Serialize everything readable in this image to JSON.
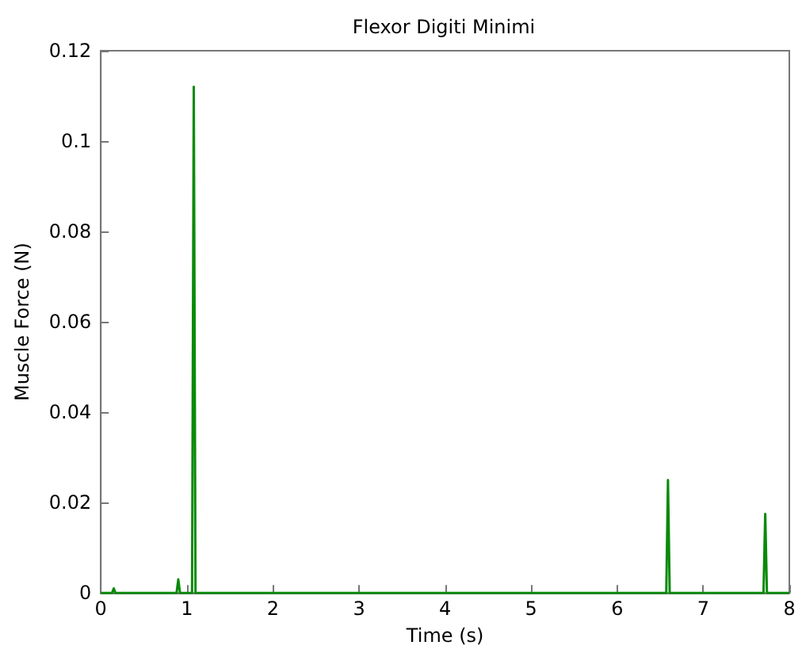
{
  "chart_data": {
    "type": "line",
    "title": "Flexor Digiti Minimi",
    "xlabel": "Time (s)",
    "ylabel": "Muscle Force (N)",
    "series": [
      {
        "color": "#0a8a0a",
        "x": [
          0,
          0.13,
          0.15,
          0.17,
          0.86,
          0.88,
          0.9,
          0.92,
          1.04,
          1.06,
          1.08,
          1.1,
          1.12,
          6.55,
          6.57,
          6.59,
          6.61,
          6.63,
          7.68,
          7.7,
          7.72,
          7.74,
          8
        ],
        "values": [
          0,
          0,
          0.001,
          0,
          0,
          0,
          0.003,
          0,
          0,
          0,
          0.112,
          0,
          0,
          0,
          0,
          0.025,
          0,
          0,
          0,
          0,
          0.0175,
          0,
          0
        ]
      }
    ],
    "xlim": [
      0,
      8
    ],
    "xticks": [
      0,
      1,
      2,
      3,
      4,
      5,
      6,
      7,
      8
    ],
    "ylim": [
      0,
      0.12
    ],
    "yticks": [
      0,
      0.02,
      0.04,
      0.06,
      0.08,
      0.1,
      0.12
    ],
    "grid": false,
    "marker": "none",
    "line_style": "solid"
  }
}
